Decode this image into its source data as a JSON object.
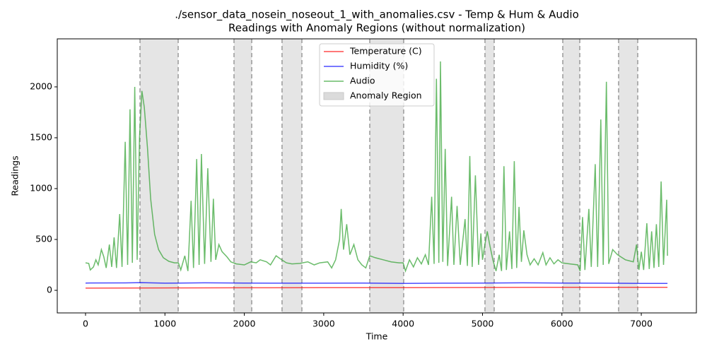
{
  "chart_data": {
    "type": "line",
    "title": [
      "./sensor_data_nosein_noseout_1_with_anomalies.csv - Temp & Hum & Audio",
      "Readings with Anomaly Regions (without normalization)"
    ],
    "xlabel": "Time",
    "ylabel": "Readings",
    "xlim": [
      -356,
      7694
    ],
    "ylim": [
      -222,
      2472
    ],
    "xticks": [
      0,
      1000,
      2000,
      3000,
      4000,
      5000,
      6000,
      7000
    ],
    "yticks": [
      0,
      500,
      1000,
      1500,
      2000
    ],
    "legend": "top-center",
    "series": [
      {
        "name": "Temperature (C)",
        "color": "#ff0000",
        "x": [
          0,
          1000,
          2000,
          3000,
          4000,
          5000,
          6000,
          7000,
          7330
        ],
        "values": [
          22,
          24,
          25,
          26,
          26,
          28,
          30,
          30,
          30
        ]
      },
      {
        "name": "Humidity (%)",
        "color": "#0000ff",
        "x": [
          0,
          500,
          700,
          1000,
          1500,
          2000,
          2500,
          3000,
          3500,
          4000,
          4500,
          5000,
          5500,
          6000,
          6500,
          7000,
          7330
        ],
        "values": [
          72,
          73,
          76,
          70,
          74,
          72,
          70,
          70,
          71,
          68,
          70,
          72,
          74,
          72,
          70,
          68,
          68
        ]
      },
      {
        "name": "Audio",
        "color": "#2ca02c",
        "x": [
          0,
          40,
          60,
          100,
          130,
          160,
          200,
          230,
          260,
          300,
          330,
          360,
          390,
          430,
          460,
          500,
          530,
          560,
          590,
          620,
          650,
          680,
          710,
          740,
          780,
          820,
          870,
          920,
          980,
          1050,
          1120,
          1170,
          1200,
          1250,
          1290,
          1330,
          1360,
          1400,
          1430,
          1460,
          1500,
          1540,
          1580,
          1610,
          1640,
          1680,
          1720,
          1780,
          1830,
          1900,
          2000,
          2080,
          2150,
          2200,
          2280,
          2330,
          2400,
          2470,
          2530,
          2600,
          2700,
          2800,
          2880,
          2950,
          3050,
          3100,
          3150,
          3200,
          3220,
          3250,
          3290,
          3330,
          3380,
          3430,
          3480,
          3530,
          3580,
          3650,
          3750,
          3850,
          3950,
          4000,
          4030,
          4080,
          4130,
          4180,
          4230,
          4280,
          4320,
          4360,
          4390,
          4420,
          4450,
          4470,
          4500,
          4530,
          4560,
          4610,
          4640,
          4680,
          4720,
          4780,
          4810,
          4840,
          4870,
          4910,
          4950,
          4980,
          5000,
          5030,
          5060,
          5090,
          5130,
          5170,
          5210,
          5240,
          5270,
          5300,
          5340,
          5370,
          5400,
          5430,
          5460,
          5490,
          5520,
          5560,
          5600,
          5650,
          5700,
          5760,
          5800,
          5850,
          5900,
          5950,
          6000,
          6100,
          6200,
          6230,
          6260,
          6290,
          6340,
          6370,
          6420,
          6450,
          6490,
          6520,
          6560,
          6590,
          6640,
          6700,
          6800,
          6900,
          6940,
          6970,
          7000,
          7030,
          7070,
          7100,
          7130,
          7160,
          7190,
          7220,
          7250,
          7280,
          7320,
          7330
        ],
        "values": [
          270,
          265,
          200,
          230,
          300,
          250,
          400,
          330,
          220,
          450,
          230,
          520,
          220,
          750,
          230,
          1460,
          250,
          1780,
          270,
          2000,
          300,
          1500,
          1960,
          1800,
          1400,
          900,
          550,
          400,
          320,
          285,
          270,
          270,
          200,
          340,
          190,
          880,
          220,
          1290,
          250,
          1340,
          260,
          1200,
          280,
          900,
          300,
          450,
          380,
          330,
          280,
          260,
          250,
          280,
          270,
          300,
          280,
          250,
          340,
          300,
          270,
          260,
          265,
          280,
          250,
          270,
          280,
          220,
          300,
          500,
          800,
          400,
          650,
          350,
          450,
          300,
          250,
          220,
          340,
          320,
          300,
          280,
          270,
          270,
          190,
          300,
          230,
          320,
          260,
          350,
          250,
          920,
          260,
          2080,
          270,
          2250,
          280,
          1390,
          240,
          920,
          250,
          830,
          250,
          700,
          240,
          1320,
          230,
          1130,
          250,
          560,
          300,
          450,
          580,
          450,
          300,
          190,
          350,
          190,
          1220,
          200,
          580,
          210,
          1270,
          220,
          820,
          280,
          590,
          350,
          250,
          310,
          250,
          370,
          250,
          320,
          260,
          300,
          270,
          260,
          250,
          190,
          720,
          200,
          800,
          230,
          1240,
          230,
          1680,
          250,
          2050,
          260,
          400,
          350,
          300,
          280,
          450,
          200,
          380,
          200,
          660,
          210,
          580,
          220,
          650,
          230,
          1070,
          250,
          890,
          340
        ]
      }
    ],
    "anomaly_label": "Anomaly Region",
    "anomaly_color": "#d3d3d3",
    "anomaly_regions": [
      [
        686,
        1167
      ],
      [
        1870,
        2093
      ],
      [
        2475,
        2725
      ],
      [
        3580,
        4007
      ],
      [
        5031,
        5147
      ],
      [
        6011,
        6225
      ],
      [
        6714,
        6955
      ]
    ]
  }
}
